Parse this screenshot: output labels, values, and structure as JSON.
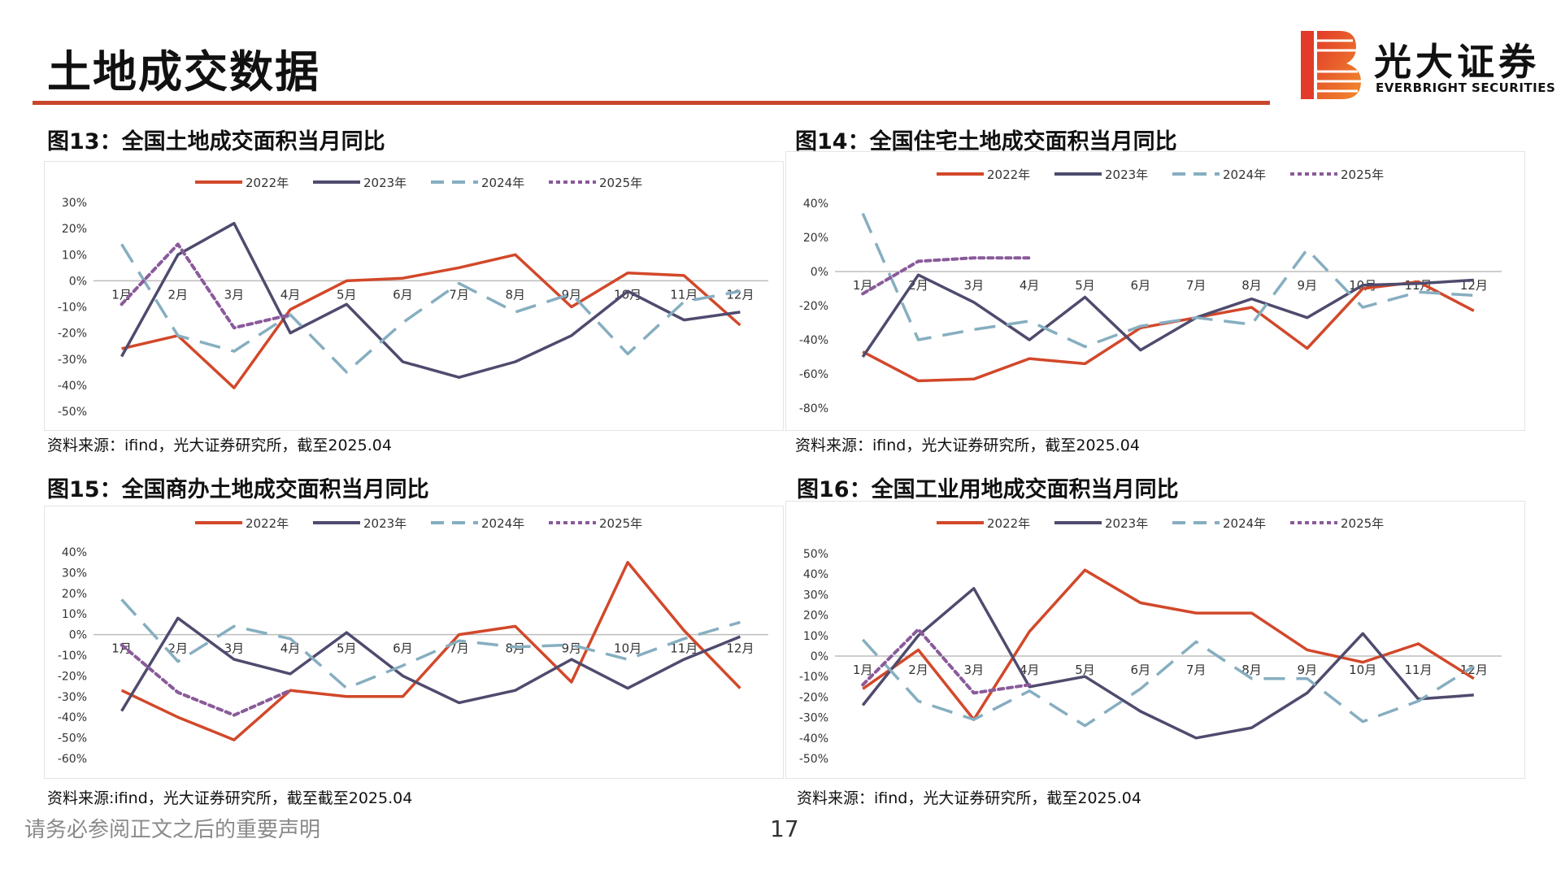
{
  "header": {
    "title": "土地成交数据",
    "logo_cn": "光大证券",
    "logo_en": "EVERBRIGHT SECURITIES",
    "accent_color": "#c8472b"
  },
  "footer": {
    "disclaimer": "请务必参阅正文之后的重要声明",
    "page_number": "17"
  },
  "series_style": [
    {
      "name": "2022年",
      "color": "#d2482a",
      "dash": "solid"
    },
    {
      "name": "2023年",
      "color": "#4e4b6e",
      "dash": "solid"
    },
    {
      "name": "2024年",
      "color": "#86aec0",
      "dash": "long-dash"
    },
    {
      "name": "2025年",
      "color": "#8a5a9a",
      "dash": "dotted"
    }
  ],
  "figures": [
    {
      "title": "图13：全国土地成交面积当月同比",
      "source": "资料来源：ifind，光大证券研究所，截至2025.04"
    },
    {
      "title": "图14：全国住宅土地成交面积当月同比",
      "source": "资料来源：ifind，光大证券研究所，截至2025.04"
    },
    {
      "title": "图15：全国商办土地成交面积当月同比",
      "source": "资料来源:ifind，光大证券研究所，截至截至2025.04"
    },
    {
      "title": "图16：全国工业用地成交面积当月同比",
      "source": "资料来源：ifind，光大证券研究所，截至2025.04"
    }
  ],
  "chart_data": [
    {
      "type": "line",
      "title": "图13：全国土地成交面积当月同比",
      "categories": [
        "1月",
        "2月",
        "3月",
        "4月",
        "5月",
        "6月",
        "7月",
        "8月",
        "9月",
        "10月",
        "11月",
        "12月"
      ],
      "ylim": [
        -50,
        30
      ],
      "yticks": [
        30,
        20,
        10,
        0,
        -10,
        -20,
        -30,
        -40,
        -50
      ],
      "y_unit": "%",
      "legend": "top",
      "grid": false,
      "series": [
        {
          "name": "2022年",
          "values": [
            -26,
            -21,
            -41,
            -11,
            0,
            1,
            5,
            10,
            -10,
            3,
            2,
            -17
          ]
        },
        {
          "name": "2023年",
          "values": [
            -29,
            10,
            22,
            -20,
            -9,
            -31,
            -37,
            -31,
            -21,
            -4,
            -15,
            -12
          ]
        },
        {
          "name": "2024年",
          "values": [
            14,
            -21,
            -27,
            -13,
            -35,
            -16,
            -1,
            -12,
            -5,
            -28,
            -8,
            -4
          ]
        },
        {
          "name": "2025年",
          "values": [
            -9,
            14,
            -18,
            -13,
            null,
            null,
            null,
            null,
            null,
            null,
            null,
            null
          ]
        }
      ]
    },
    {
      "type": "line",
      "title": "图14：全国住宅土地成交面积当月同比",
      "categories": [
        "1月",
        "2月",
        "3月",
        "4月",
        "5月",
        "6月",
        "7月",
        "8月",
        "9月",
        "10月",
        "11月",
        "12月"
      ],
      "ylim": [
        -80,
        40
      ],
      "yticks": [
        40,
        20,
        0,
        -20,
        -40,
        -60,
        -80
      ],
      "y_unit": "%",
      "legend": "top",
      "grid": false,
      "series": [
        {
          "name": "2022年",
          "values": [
            -47,
            -64,
            -63,
            -51,
            -54,
            -33,
            -27,
            -21,
            -45,
            -10,
            -6,
            -23
          ]
        },
        {
          "name": "2023年",
          "values": [
            -50,
            -2,
            -18,
            -40,
            -15,
            -46,
            -27,
            -16,
            -27,
            -8,
            -7,
            -5
          ]
        },
        {
          "name": "2024年",
          "values": [
            34,
            -40,
            -34,
            -29,
            -44,
            -32,
            -27,
            -31,
            13,
            -21,
            -12,
            -14
          ]
        },
        {
          "name": "2025年",
          "values": [
            -13,
            6,
            8,
            8,
            null,
            null,
            null,
            null,
            null,
            null,
            null,
            null
          ]
        }
      ]
    },
    {
      "type": "line",
      "title": "图15：全国商办土地成交面积当月同比",
      "categories": [
        "1月",
        "2月",
        "3月",
        "4月",
        "5月",
        "6月",
        "7月",
        "8月",
        "9月",
        "10月",
        "11月",
        "12月"
      ],
      "ylim": [
        -60,
        40
      ],
      "yticks": [
        40,
        30,
        20,
        10,
        0,
        -10,
        -20,
        -30,
        -40,
        -50,
        -60
      ],
      "y_unit": "%",
      "legend": "top",
      "grid": false,
      "series": [
        {
          "name": "2022年",
          "values": [
            -27,
            -40,
            -51,
            -27,
            -30,
            -30,
            0,
            4,
            -23,
            35,
            2,
            -26
          ]
        },
        {
          "name": "2023年",
          "values": [
            -37,
            8,
            -12,
            -19,
            1,
            -20,
            -33,
            -27,
            -12,
            -26,
            -12,
            -1
          ]
        },
        {
          "name": "2024年",
          "values": [
            17,
            -13,
            4,
            -2,
            -26,
            -15,
            -3,
            -6,
            -5,
            -12,
            -2,
            6
          ]
        },
        {
          "name": "2025年",
          "values": [
            -5,
            -28,
            -39,
            -27,
            null,
            null,
            null,
            null,
            null,
            null,
            null,
            null
          ]
        }
      ]
    },
    {
      "type": "line",
      "title": "图16：全国工业用地成交面积当月同比",
      "categories": [
        "1月",
        "2月",
        "3月",
        "4月",
        "5月",
        "6月",
        "7月",
        "8月",
        "9月",
        "10月",
        "11月",
        "12月"
      ],
      "ylim": [
        -50,
        50
      ],
      "yticks": [
        50,
        40,
        30,
        20,
        10,
        0,
        -10,
        -20,
        -30,
        -40,
        -50
      ],
      "y_unit": "%",
      "legend": "top",
      "grid": false,
      "series": [
        {
          "name": "2022年",
          "values": [
            -16,
            3,
            -31,
            12,
            42,
            26,
            21,
            21,
            3,
            -3,
            6,
            -11
          ]
        },
        {
          "name": "2023年",
          "values": [
            -24,
            10,
            33,
            -15,
            -10,
            -27,
            -40,
            -35,
            -18,
            11,
            -21,
            -19
          ]
        },
        {
          "name": "2024年",
          "values": [
            8,
            -22,
            -31,
            -17,
            -34,
            -16,
            7,
            -11,
            -11,
            -32,
            -22,
            -5
          ]
        },
        {
          "name": "2025年",
          "values": [
            -14,
            13,
            -18,
            -14,
            null,
            null,
            null,
            null,
            null,
            null,
            null,
            null
          ]
        }
      ]
    }
  ]
}
